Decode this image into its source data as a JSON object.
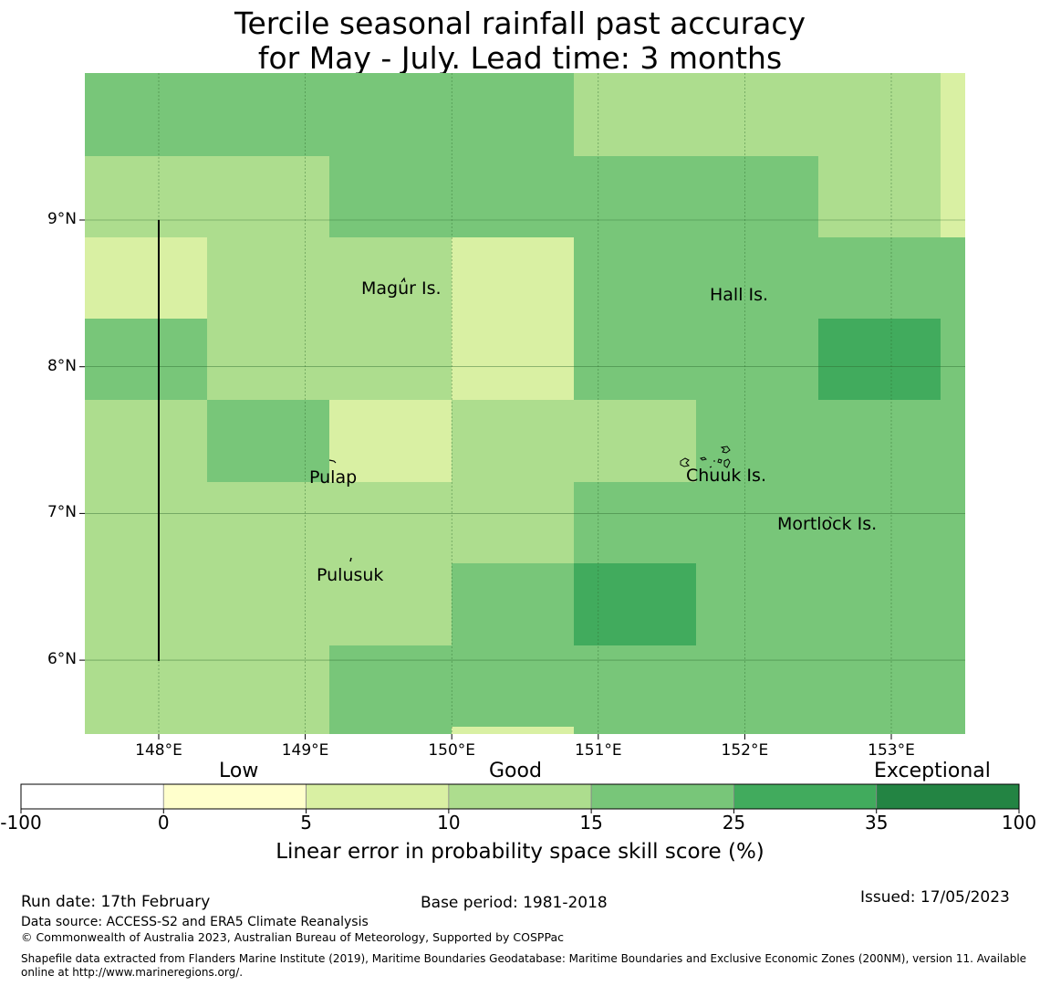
{
  "title": {
    "line1": "Tercile seasonal rainfall past accuracy",
    "line2": "for May - July. Lead time: 3 months"
  },
  "map": {
    "lon_ticks": [
      {
        "value": 148,
        "label": "148°E"
      },
      {
        "value": 149,
        "label": "149°E"
      },
      {
        "value": 150,
        "label": "150°E"
      },
      {
        "value": 151,
        "label": "151°E"
      },
      {
        "value": 152,
        "label": "152°E"
      },
      {
        "value": 153,
        "label": "153°E"
      }
    ],
    "lat_ticks": [
      {
        "value": 9,
        "label": "9°N"
      },
      {
        "value": 8,
        "label": "8°N"
      },
      {
        "value": 7,
        "label": "7°N"
      },
      {
        "value": 6,
        "label": "6°N"
      }
    ],
    "place_labels": {
      "magur": "Magur Is.",
      "hall": "Hall Is.",
      "pulap": "Pulap",
      "chuuk": "Chuuk Is.",
      "mortlock": "Mortlock Is.",
      "pulusuk": "Pulusuk"
    },
    "skill_grid": [
      [
        "25",
        "25",
        "25",
        "25",
        "15",
        "15",
        "15",
        "10"
      ],
      [
        "15",
        "15",
        "25",
        "25",
        "25",
        "25",
        "15",
        "10"
      ],
      [
        "10",
        "15",
        "15",
        "10",
        "25",
        "25",
        "25",
        "25"
      ],
      [
        "25",
        "15",
        "15",
        "10",
        "25",
        "25",
        "35",
        "25"
      ],
      [
        "15",
        "25",
        "10",
        "15",
        "15",
        "25",
        "25",
        "25"
      ],
      [
        "15",
        "15",
        "15",
        "15",
        "25",
        "25",
        "25",
        "25"
      ],
      [
        "15",
        "15",
        "15",
        "25",
        "35",
        "25",
        "25",
        "25"
      ],
      [
        "15",
        "15",
        "25",
        "25",
        "25",
        "25",
        "25",
        "25"
      ],
      [
        "15",
        "15",
        "25",
        "10",
        "25",
        "25",
        "25",
        "25"
      ]
    ]
  },
  "colorbar": {
    "category_labels": {
      "low": "Low",
      "good": "Good",
      "exceptional": "Exceptional"
    },
    "bins": [
      {
        "from": "-100",
        "to": "0",
        "color": "#ffffff"
      },
      {
        "from": "0",
        "to": "5",
        "color": "#ffffcc"
      },
      {
        "from": "5",
        "to": "10",
        "color": "#d9f0a3"
      },
      {
        "from": "10",
        "to": "15",
        "color": "#addd8e"
      },
      {
        "from": "15",
        "to": "25",
        "color": "#78c679"
      },
      {
        "from": "25",
        "to": "35",
        "color": "#41ab5d"
      },
      {
        "from": "35",
        "to": "100",
        "color": "#238443"
      }
    ],
    "tick_labels": [
      "-100",
      "0",
      "5",
      "10",
      "15",
      "25",
      "35",
      "100"
    ],
    "axis_label": "Linear error in probability space skill score (%)"
  },
  "footer": {
    "run_date": "Run date: 17th February",
    "base_period": "Base period: 1981-2018",
    "issued": "Issued: 17/05/2023",
    "data_source": "Data source: ACCESS-S2 and ERA5 Climate Reanalysis",
    "copyright": "© Commonwealth of Australia 2023, Australian Bureau of Meteorology, Supported by COSPPac",
    "shapefile_line1": "Shapefile data extracted from Flanders Marine Institute (2019), Maritime Boundaries Geodatabase: Maritime Boundaries and Exclusive Economic Zones (200NM), version 11. Available",
    "shapefile_line2": "online at http://www.marineregions.org/."
  }
}
